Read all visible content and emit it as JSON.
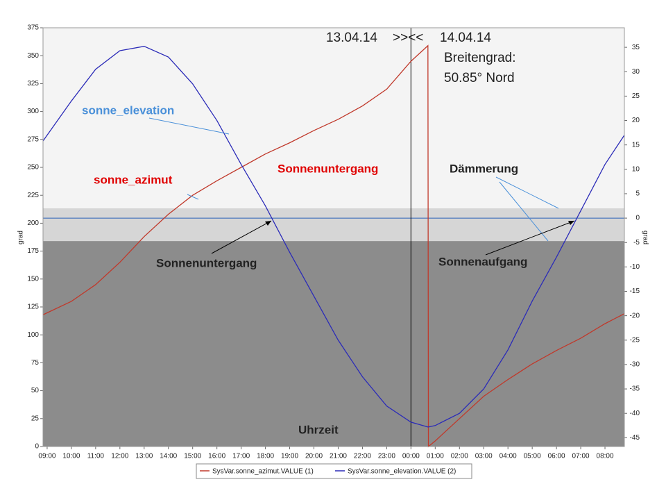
{
  "chart_data": {
    "type": "line",
    "x": [
      8.83,
      10,
      11,
      12,
      13,
      14,
      15,
      16,
      17,
      18,
      19,
      20,
      21,
      22,
      23,
      24,
      24.7,
      24.72,
      25,
      26,
      27,
      28,
      29,
      30,
      31,
      32,
      32.8
    ],
    "series": [
      {
        "name": "SysVar.sonne_azimut.VALUE (1)",
        "color": "#c0392b",
        "values": [
          118,
          130,
          145,
          165,
          188,
          208,
          225,
          238,
          250,
          262,
          272,
          283,
          293,
          305,
          320,
          345,
          359,
          0,
          5,
          25,
          45,
          60,
          74,
          86,
          97,
          110,
          119
        ]
      },
      {
        "name": "SysVar.sonne_elevation.VALUE (2)",
        "color": "#2b2bb8",
        "axis": "y2",
        "values": [
          15.8,
          24,
          30.5,
          34.3,
          35.2,
          33,
          27.5,
          20,
          11,
          2.5,
          -7,
          -16,
          -25,
          -32.5,
          -38.5,
          -41.8,
          -42.8,
          -42.8,
          -42.5,
          -40,
          -35,
          -27,
          -17,
          -8,
          1.5,
          11,
          17
        ]
      }
    ],
    "xlim": [
      8.83,
      32.8
    ],
    "xticks": [
      {
        "value": 9,
        "label": "09:00"
      },
      {
        "value": 10,
        "label": "10:00"
      },
      {
        "value": 11,
        "label": "11:00"
      },
      {
        "value": 12,
        "label": "12:00"
      },
      {
        "value": 13,
        "label": "13:00"
      },
      {
        "value": 14,
        "label": "14:00"
      },
      {
        "value": 15,
        "label": "15:00"
      },
      {
        "value": 16,
        "label": "16:00"
      },
      {
        "value": 17,
        "label": "17:00"
      },
      {
        "value": 18,
        "label": "18:00"
      },
      {
        "value": 19,
        "label": "19:00"
      },
      {
        "value": 20,
        "label": "20:00"
      },
      {
        "value": 21,
        "label": "21:00"
      },
      {
        "value": 22,
        "label": "22:00"
      },
      {
        "value": 23,
        "label": "23:00"
      },
      {
        "value": 24,
        "label": "00:00"
      },
      {
        "value": 25,
        "label": "01:00"
      },
      {
        "value": 26,
        "label": "02:00"
      },
      {
        "value": 27,
        "label": "03:00"
      },
      {
        "value": 28,
        "label": "04:00"
      },
      {
        "value": 29,
        "label": "05:00"
      },
      {
        "value": 30,
        "label": "06:00"
      },
      {
        "value": 31,
        "label": "07:00"
      },
      {
        "value": 32,
        "label": "08:00"
      }
    ],
    "ylim": [
      0,
      375
    ],
    "yticks": [
      0,
      25,
      50,
      75,
      100,
      125,
      150,
      175,
      200,
      225,
      250,
      275,
      300,
      325,
      350,
      375
    ],
    "y2lim": [
      -46.8,
      39
    ],
    "y2ticks": [
      -45,
      -40,
      -35,
      -30,
      -25,
      -20,
      -15,
      -10,
      -5,
      0,
      5,
      10,
      15,
      20,
      25,
      30,
      35
    ],
    "ylabel": "grad",
    "y2label": "grad",
    "bands": [
      {
        "from": 2,
        "to": 39,
        "color": "#f4f4f4"
      },
      {
        "from": -4.7,
        "to": 2,
        "color": "#d6d6d6"
      },
      {
        "from": -46.8,
        "to": -4.7,
        "color": "#8c8c8c"
      }
    ],
    "hline_y2": 0,
    "vline_x": 24,
    "annotations": [
      "13.04.14",
      ">><<",
      "14.04.14",
      "Breitengrad:",
      "50.85° Nord",
      "sonne_elevation",
      "sonne_azimut",
      "Sonnenuntergang",
      "Dämmerung",
      "Sonnenuntergang",
      "Sonnenaufgang",
      "Uhrzeit"
    ]
  }
}
